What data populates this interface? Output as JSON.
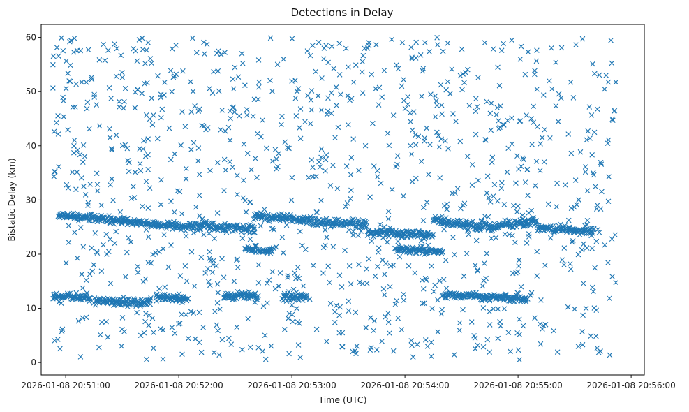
{
  "chart_data": {
    "type": "scatter",
    "title": "Detections in Delay",
    "xlabel": "Time (UTC)",
    "ylabel": "Bistatic Delay (km)",
    "marker": "x",
    "marker_color": "#1f77b4",
    "x_ticks": [
      "2026-01-08 20:51:00",
      "2026-01-08 20:52:00",
      "2026-01-08 20:53:00",
      "2026-01-08 20:54:00",
      "2026-01-08 20:55:00",
      "2026-01-08 20:56:00"
    ],
    "y_ticks": [
      0,
      10,
      20,
      30,
      40,
      50,
      60
    ],
    "xlim": [
      "2026-01-08 20:50:47",
      "2026-01-08 20:56:07"
    ],
    "ylim": [
      -2.3,
      62.4
    ],
    "grid": false,
    "tracks": [
      {
        "x": [
          "20:50:53",
          "20:51:13"
        ],
        "y": [
          12.3,
          11.9
        ]
      },
      {
        "x": [
          "20:51:15",
          "20:51:45"
        ],
        "y": [
          11.3,
          10.9
        ]
      },
      {
        "x": [
          "20:51:48",
          "20:52:05"
        ],
        "y": [
          12.2,
          11.7
        ]
      },
      {
        "x": [
          "20:52:24",
          "20:52:42"
        ],
        "y": [
          12.3,
          12.3
        ]
      },
      {
        "x": [
          "20:52:55",
          "20:53:08"
        ],
        "y": [
          12.1,
          12.0
        ]
      },
      {
        "x": [
          "20:54:20",
          "20:54:42"
        ],
        "y": [
          12.4,
          12.1
        ]
      },
      {
        "x": [
          "20:54:42",
          "20:55:05"
        ],
        "y": [
          12.0,
          11.8
        ]
      },
      {
        "x": [
          "20:50:56",
          "20:51:30"
        ],
        "y": [
          27.2,
          26.2
        ]
      },
      {
        "x": [
          "20:51:30",
          "20:52:05"
        ],
        "y": [
          26.0,
          25.0
        ]
      },
      {
        "x": [
          "20:52:05",
          "20:52:40"
        ],
        "y": [
          25.4,
          24.6
        ]
      },
      {
        "x": [
          "20:52:40",
          "20:53:10"
        ],
        "y": [
          27.0,
          26.3
        ]
      },
      {
        "x": [
          "20:53:10",
          "20:53:40"
        ],
        "y": [
          26.0,
          25.5
        ]
      },
      {
        "x": [
          "20:53:40",
          "20:54:15"
        ],
        "y": [
          24.0,
          23.6
        ]
      },
      {
        "x": [
          "20:54:15",
          "20:54:50"
        ],
        "y": [
          26.2,
          24.8
        ]
      },
      {
        "x": [
          "20:54:50",
          "20:55:10"
        ],
        "y": [
          25.4,
          26.0
        ]
      },
      {
        "x": [
          "20:55:10",
          "20:55:40"
        ],
        "y": [
          24.9,
          24.2
        ]
      },
      {
        "x": [
          "20:52:35",
          "20:52:50"
        ],
        "y": [
          21.0,
          20.5
        ]
      },
      {
        "x": [
          "20:53:55",
          "20:54:20"
        ],
        "y": [
          21.0,
          20.4
        ]
      }
    ],
    "background_noise": {
      "x_range": [
        "20:50:53",
        "20:55:52"
      ],
      "y_range": [
        0.5,
        60
      ],
      "count": 1100
    }
  }
}
